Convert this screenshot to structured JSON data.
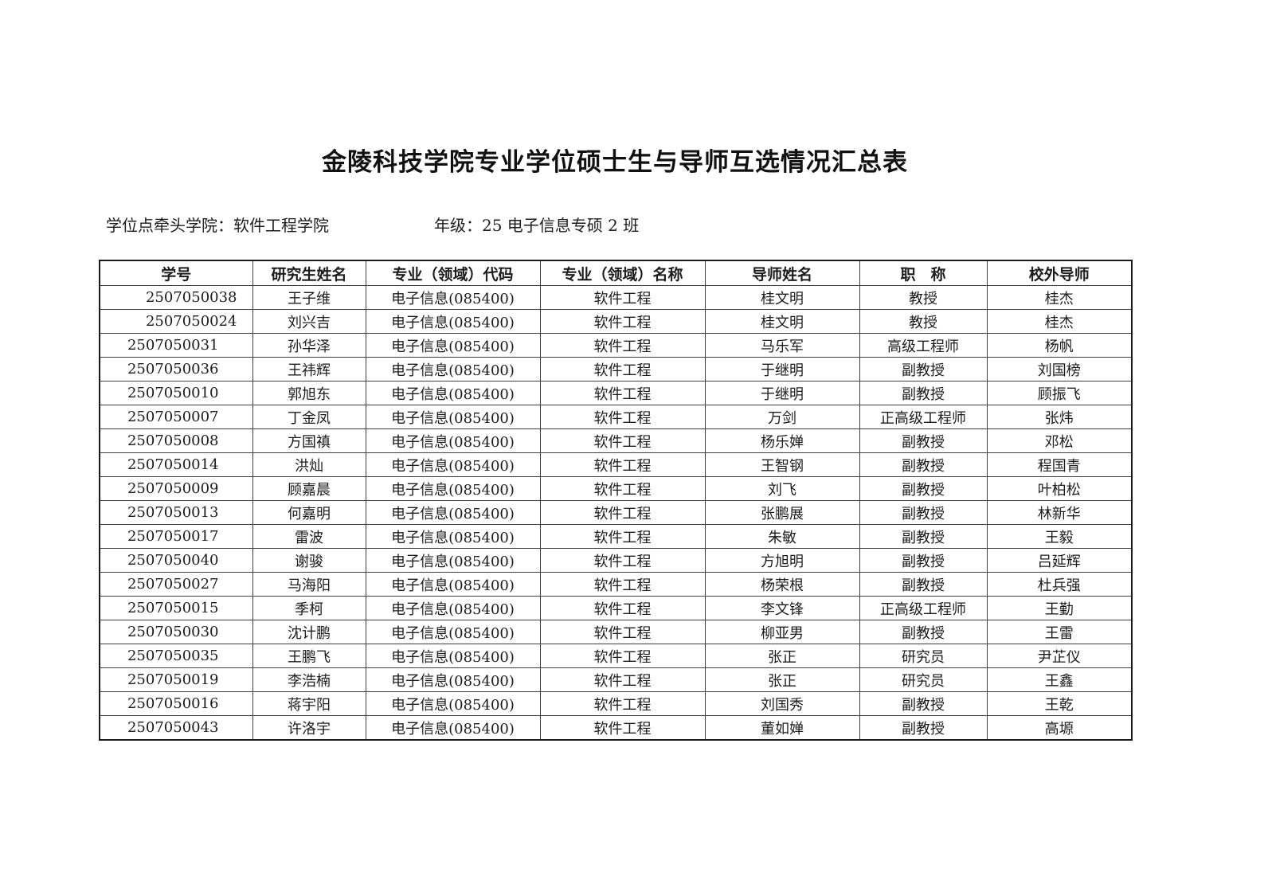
{
  "page": {
    "title": "金陵科技学院专业学位硕士生与导师互选情况汇总表"
  },
  "meta": {
    "college": "学位点牵头学院：软件工程学院",
    "grade": "年级：25 电子信息专硕 2 班"
  },
  "table": {
    "headers": [
      "学号",
      "研究生姓名",
      "专业（领域）代码",
      "专业（领域）名称",
      "导师姓名",
      "职　称",
      "校外导师"
    ],
    "column_names": [
      "student-id",
      "student-name",
      "major-code",
      "major-name",
      "supervisor-name",
      "supervisor-title",
      "external-supervisor"
    ],
    "rows": [
      [
        "2507050038",
        "王子维",
        "电子信息(085400)",
        "软件工程",
        "桂文明",
        "教授",
        "桂杰"
      ],
      [
        "2507050024",
        "刘兴吉",
        "电子信息(085400)",
        "软件工程",
        "桂文明",
        "教授",
        "桂杰"
      ],
      [
        "2507050031",
        "孙华泽",
        "电子信息(085400)",
        "软件工程",
        "马乐军",
        "高级工程师",
        "杨帆"
      ],
      [
        "2507050036",
        "王祎辉",
        "电子信息(085400)",
        "软件工程",
        "于继明",
        "副教授",
        "刘国榜"
      ],
      [
        "2507050010",
        "郭旭东",
        "电子信息(085400)",
        "软件工程",
        "于继明",
        "副教授",
        "顾振飞"
      ],
      [
        "2507050007",
        "丁金凤",
        "电子信息(085400)",
        "软件工程",
        "万剑",
        "正高级工程师",
        "张炜"
      ],
      [
        "2507050008",
        "方国禛",
        "电子信息(085400)",
        "软件工程",
        "杨乐婵",
        "副教授",
        "邓松"
      ],
      [
        "2507050014",
        "洪灿",
        "电子信息(085400)",
        "软件工程",
        "王智钢",
        "副教授",
        "程国青"
      ],
      [
        "2507050009",
        "顾嘉晨",
        "电子信息(085400)",
        "软件工程",
        "刘飞",
        "副教授",
        "叶柏松"
      ],
      [
        "2507050013",
        "何嘉明",
        "电子信息(085400)",
        "软件工程",
        "张鹏展",
        "副教授",
        "林新华"
      ],
      [
        "2507050017",
        "雷波",
        "电子信息(085400)",
        "软件工程",
        "朱敏",
        "副教授",
        "王毅"
      ],
      [
        "2507050040",
        "谢骏",
        "电子信息(085400)",
        "软件工程",
        "方旭明",
        "副教授",
        "吕延辉"
      ],
      [
        "2507050027",
        "马海阳",
        "电子信息(085400)",
        "软件工程",
        "杨荣根",
        "副教授",
        "杜兵强"
      ],
      [
        "2507050015",
        "季柯",
        "电子信息(085400)",
        "软件工程",
        "李文锋",
        "正高级工程师",
        "王勤"
      ],
      [
        "2507050030",
        "沈计鹏",
        "电子信息(085400)",
        "软件工程",
        "柳亚男",
        "副教授",
        "王雷"
      ],
      [
        "2507050035",
        "王鹏飞",
        "电子信息(085400)",
        "软件工程",
        "张正",
        "研究员",
        "尹芷仪"
      ],
      [
        "2507050019",
        "李浩楠",
        "电子信息(085400)",
        "软件工程",
        "张正",
        "研究员",
        "王鑫"
      ],
      [
        "2507050016",
        "蒋宇阳",
        "电子信息(085400)",
        "软件工程",
        "刘国秀",
        "副教授",
        "王乾"
      ],
      [
        "2507050043",
        "许洛宇",
        "电子信息(085400)",
        "软件工程",
        "董如婵",
        "副教授",
        "高塬"
      ]
    ]
  }
}
